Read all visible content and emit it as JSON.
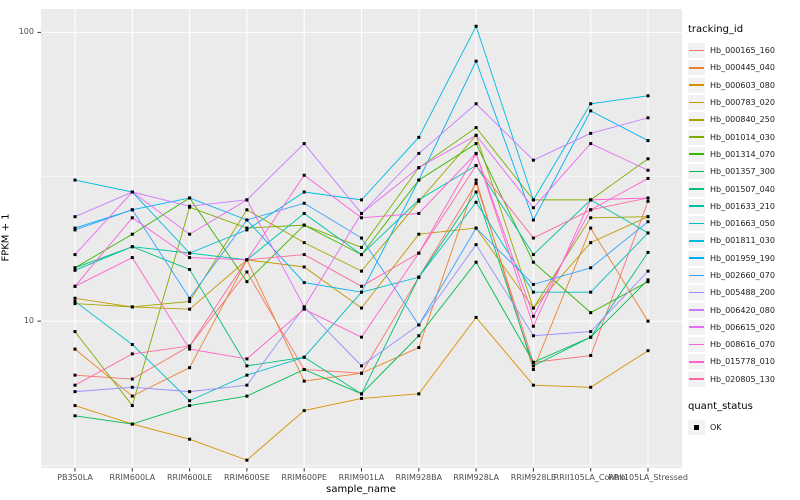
{
  "figure": {
    "background": "#FFFFFF",
    "panel_background": "#EBEBEB",
    "grid_major_color": "#FFFFFF",
    "grid_minor_color": "#F7F7F7",
    "tick_mark_color": "#333333",
    "tick_text_color": "#4D4D4D",
    "point_color": "#000000"
  },
  "chart_data": {
    "type": "line",
    "title": "",
    "xlabel": "sample_name",
    "ylabel": "FPKM + 1",
    "y_scale": "log10",
    "ylim": [
      3.1,
      120.5
    ],
    "y_ticks": [
      {
        "label": "10",
        "value": 10
      },
      {
        "label": "100",
        "value": 100
      }
    ],
    "y_minor_breaks": [
      3.162,
      31.623
    ],
    "grid": true,
    "legend_position": "right",
    "categories": [
      "PB350LA",
      "RRIM600LA",
      "RRIM600LE",
      "RRIM600SE",
      "RRIM600PE",
      "RRIM901LA",
      "RRIM928BA",
      "RRIM928LA",
      "RRIM928LE",
      "RRII105LA_Control",
      "RRII105LA_Stressed"
    ],
    "series": [
      {
        "name": "Hb_000165_160",
        "color": "#F8766D",
        "values": [
          6.5,
          6.3,
          8.2,
          14.8,
          6.8,
          6.6,
          14.2,
          30.0,
          7.2,
          7.6,
          26.0
        ]
      },
      {
        "name": "Hb_000445_040",
        "color": "#EA8331",
        "values": [
          8.0,
          5.5,
          6.9,
          16.3,
          6.2,
          6.6,
          8.1,
          30.8,
          6.8,
          21.0,
          10.0
        ]
      },
      {
        "name": "Hb_000603_080",
        "color": "#D89000",
        "values": [
          5.1,
          4.4,
          3.9,
          3.3,
          4.9,
          5.4,
          5.6,
          10.3,
          6.0,
          5.9,
          7.9
        ]
      },
      {
        "name": "Hb_000783_020",
        "color": "#C09B00",
        "values": [
          12.0,
          11.2,
          11.0,
          16.3,
          15.4,
          11.1,
          20.0,
          21.0,
          11.1,
          18.7,
          23.0
        ]
      },
      {
        "name": "Hb_000840_250",
        "color": "#A3A500",
        "values": [
          11.5,
          11.2,
          11.7,
          24.3,
          18.7,
          14.9,
          26.0,
          44.0,
          11.1,
          22.8,
          23.0
        ]
      },
      {
        "name": "Hb_001014_030",
        "color": "#7CAE00",
        "values": [
          9.2,
          5.1,
          24.8,
          21.0,
          21.5,
          18.0,
          34.0,
          46.8,
          26.3,
          26.3,
          36.5
        ]
      },
      {
        "name": "Hb_001314_070",
        "color": "#39B600",
        "values": [
          15.3,
          20.0,
          26.7,
          13.7,
          21.5,
          17.0,
          30.8,
          41.2,
          16.0,
          10.7,
          13.7
        ]
      },
      {
        "name": "Hb_001357_300",
        "color": "#00BB4E",
        "values": [
          4.7,
          4.4,
          5.1,
          5.5,
          6.8,
          5.6,
          8.9,
          16.0,
          7.2,
          8.8,
          13.9
        ]
      },
      {
        "name": "Hb_001507_040",
        "color": "#00BF7D",
        "values": [
          15.3,
          18.1,
          15.1,
          7.0,
          7.5,
          5.6,
          14.2,
          28.0,
          7.0,
          8.8,
          17.3
        ]
      },
      {
        "name": "Hb_001633_210",
        "color": "#00C1A3",
        "values": [
          15.0,
          18.1,
          17.2,
          16.3,
          23.6,
          17.0,
          26.3,
          34.6,
          17.0,
          26.3,
          20.2
        ]
      },
      {
        "name": "Hb_001663_050",
        "color": "#00BFC4",
        "values": [
          11.7,
          8.3,
          5.3,
          6.5,
          7.5,
          12.6,
          14.2,
          25.8,
          12.6,
          12.6,
          20.2
        ]
      },
      {
        "name": "Hb_001811_030",
        "color": "#00BAE0",
        "values": [
          30.8,
          28.0,
          17.2,
          20.7,
          28.0,
          26.3,
          43.3,
          105.0,
          26.3,
          56.6,
          60.3
        ]
      },
      {
        "name": "Hb_001959_190",
        "color": "#00B0F6",
        "values": [
          21.0,
          24.3,
          26.7,
          22.4,
          13.6,
          12.6,
          30.8,
          79.5,
          22.4,
          53.5,
          42.2
        ]
      },
      {
        "name": "Hb_002660_070",
        "color": "#35A2FF",
        "values": [
          20.7,
          24.3,
          12.0,
          22.4,
          25.6,
          19.4,
          9.7,
          21.0,
          13.4,
          15.3,
          22.1
        ]
      },
      {
        "name": "Hb_005488_200",
        "color": "#9590FF",
        "values": [
          5.7,
          5.9,
          5.7,
          6.0,
          11.2,
          7.0,
          9.7,
          18.4,
          8.9,
          9.2,
          14.9
        ]
      },
      {
        "name": "Hb_006420_080",
        "color": "#C77CFF",
        "values": [
          23.0,
          28.0,
          25.0,
          26.3,
          41.2,
          23.6,
          38.1,
          56.6,
          36.1,
          44.7,
          50.6
        ]
      },
      {
        "name": "Hb_006615_020",
        "color": "#E76BF3",
        "values": [
          17.0,
          28.0,
          20.0,
          26.3,
          11.2,
          23.6,
          34.0,
          44.0,
          24.7,
          41.2,
          33.3
        ]
      },
      {
        "name": "Hb_008616_070",
        "color": "#FA62DB",
        "values": [
          13.2,
          22.8,
          16.6,
          16.3,
          32.0,
          22.8,
          23.6,
          38.1,
          10.4,
          24.3,
          31.2
        ]
      },
      {
        "name": "Hb_015778_010",
        "color": "#FF61CC",
        "values": [
          13.2,
          16.6,
          8.0,
          7.4,
          11.0,
          8.8,
          17.2,
          38.0,
          9.6,
          26.3,
          26.7
        ]
      },
      {
        "name": "Hb_020805_130",
        "color": "#FF67A4",
        "values": [
          6.0,
          7.7,
          8.2,
          16.3,
          17.0,
          13.2,
          17.2,
          34.6,
          19.4,
          24.3,
          26.7
        ]
      }
    ],
    "legend": {
      "color_title": "tracking_id",
      "shape_title": "quant_status",
      "shape_entries": [
        {
          "label": "OK",
          "shape": "square",
          "color": "#000000"
        }
      ]
    }
  }
}
